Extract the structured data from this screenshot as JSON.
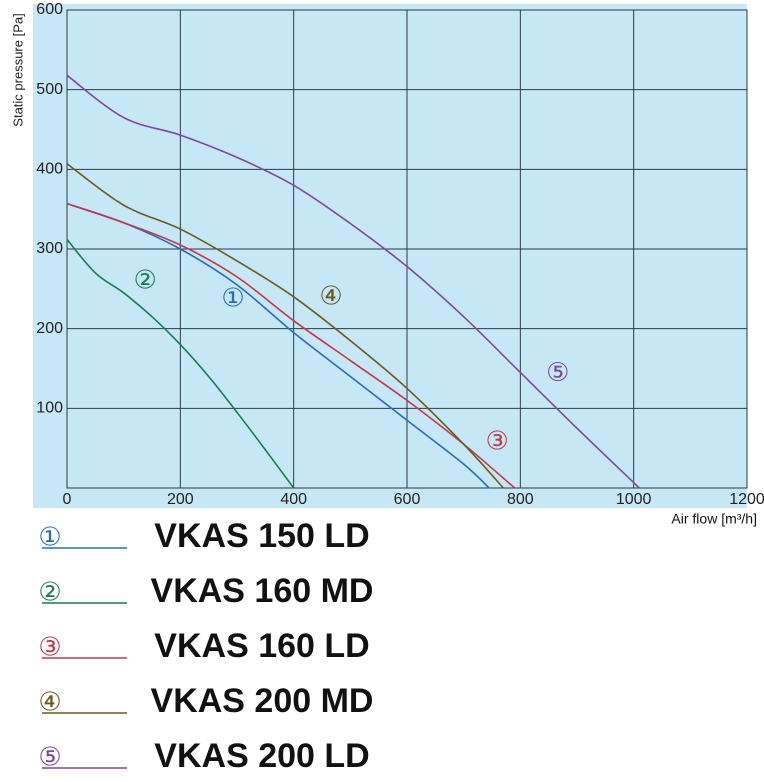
{
  "chart_data": {
    "type": "line",
    "x_label": "Air flow [m³/h]",
    "y_label": "Static pressure [Pa]",
    "xlim": [
      0,
      1200
    ],
    "xticks": [
      0,
      200,
      400,
      600,
      800,
      1000,
      1200
    ],
    "ylim": [
      0,
      600
    ],
    "yticks": [
      100,
      200,
      300,
      400,
      500,
      600
    ],
    "grid": true,
    "series": [
      {
        "name": "VKAS 150 LD",
        "marker": "①",
        "color": "#2a6db5",
        "x": [
          0,
          100,
          200,
          300,
          400,
          500,
          600,
          700,
          745
        ],
        "values": [
          357,
          333,
          300,
          255,
          195,
          140,
          85,
          30,
          0
        ]
      },
      {
        "name": "VKAS 160 MD",
        "marker": "②",
        "color": "#1f7a4f",
        "x": [
          0,
          50,
          100,
          150,
          200,
          250,
          300,
          350,
          400
        ],
        "values": [
          312,
          270,
          245,
          215,
          180,
          140,
          95,
          48,
          0
        ]
      },
      {
        "name": "VKAS 160 LD",
        "marker": "③",
        "color": "#c0394b",
        "x": [
          0,
          100,
          200,
          300,
          400,
          500,
          600,
          700,
          790
        ],
        "values": [
          357,
          333,
          305,
          265,
          210,
          160,
          110,
          55,
          0
        ]
      },
      {
        "name": "VKAS 200 MD",
        "marker": "④",
        "color": "#6b5a1e",
        "x": [
          0,
          100,
          200,
          300,
          400,
          500,
          600,
          700,
          770
        ],
        "values": [
          407,
          355,
          325,
          285,
          240,
          185,
          125,
          55,
          0
        ]
      },
      {
        "name": "VKAS 200 LD",
        "marker": "⑤",
        "color": "#7c4a9c",
        "x": [
          0,
          100,
          200,
          300,
          400,
          500,
          600,
          700,
          800,
          900,
          1010
        ],
        "values": [
          518,
          465,
          443,
          415,
          380,
          332,
          278,
          215,
          145,
          75,
          0
        ]
      }
    ],
    "annotations": [
      {
        "text": "①",
        "x": 293,
        "y": 237,
        "color": "#2a6db5"
      },
      {
        "text": "②",
        "x": 138,
        "y": 260,
        "color": "#1f7a4f"
      },
      {
        "text": "③",
        "x": 759,
        "y": 58,
        "color": "#c0394b"
      },
      {
        "text": "④",
        "x": 466,
        "y": 240,
        "color": "#6b5a1e"
      },
      {
        "text": "⑤",
        "x": 866,
        "y": 144,
        "color": "#7c4a9c"
      }
    ]
  }
}
